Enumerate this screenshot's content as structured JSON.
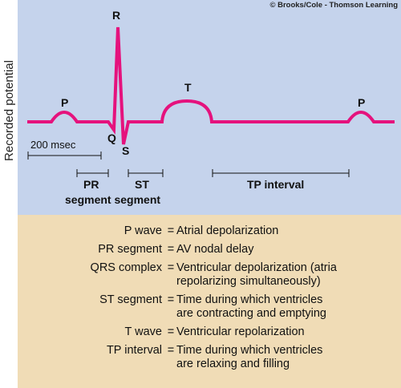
{
  "copyright": "© Brooks/Cole - Thomson Learning",
  "y_axis_label": "Recorded potential",
  "colors": {
    "trace": "#e5127d",
    "top_panel": "#c5d3ec",
    "bottom_panel": "#f0dcb6"
  },
  "waves": {
    "p1": "P",
    "r": "R",
    "q": "Q",
    "s": "S",
    "t": "T",
    "p2": "P"
  },
  "scale_bar": "200 msec",
  "intervals": {
    "pr": "PR",
    "st": "ST",
    "segment_row": "segment segment",
    "tp": "TP interval"
  },
  "legend": [
    {
      "term": "P wave",
      "definition": "Atrial depolarization"
    },
    {
      "term": "PR segment",
      "definition": "AV nodal delay"
    },
    {
      "term": "QRS complex",
      "definition": "Ventricular depolarization (atria\nrepolarizing simultaneously)"
    },
    {
      "term": "ST segment",
      "definition": "Time during which ventricles\nare contracting and emptying"
    },
    {
      "term": "T wave",
      "definition": "Ventricular repolarization"
    },
    {
      "term": "TP interval",
      "definition": "Time during which ventricles\nare relaxing and filling"
    }
  ]
}
